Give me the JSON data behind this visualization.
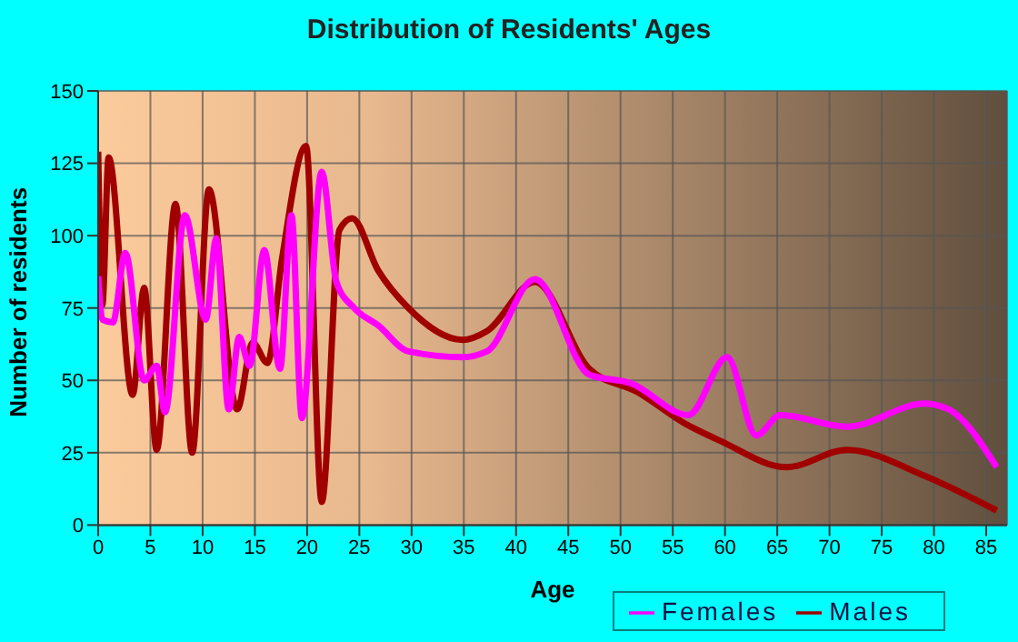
{
  "chart_data": {
    "type": "line",
    "title": "Distribution of Residents' Ages",
    "xlabel": "Age",
    "ylabel": "Number of residents",
    "xlim": [
      0,
      87
    ],
    "xticks": [
      0,
      5,
      10,
      15,
      20,
      25,
      30,
      35,
      40,
      45,
      50,
      55,
      60,
      65,
      70,
      75,
      80,
      85
    ],
    "ylim": [
      0,
      150
    ],
    "yticks": [
      0,
      25,
      50,
      75,
      100,
      125,
      150
    ],
    "grid": true,
    "legend": "bottom right",
    "marker": "none",
    "line_style": "solid",
    "series": [
      {
        "name": "Males",
        "color": "#a00000",
        "x": [
          0,
          0.4,
          1,
          3.3,
          4.4,
          5.6,
          7.4,
          9,
          10.6,
          13.3,
          14.8,
          16.2,
          17.6,
          19.9,
          21.4,
          23.1,
          24.3,
          26.8,
          29.7,
          34.9,
          37.2,
          41.8,
          47,
          51.6,
          56.2,
          59.6,
          65.9,
          71.7,
          79.1,
          86
        ],
        "values": [
          129,
          76,
          127,
          45,
          82,
          26,
          111,
          25,
          116,
          40,
          63,
          56,
          92,
          131,
          8,
          102,
          106,
          88,
          75,
          64,
          67,
          84,
          54,
          46,
          35,
          29,
          20,
          26,
          17,
          5
        ]
      },
      {
        "name": "Females",
        "color": "#ff00ff",
        "x": [
          0,
          0.4,
          1.4,
          2.6,
          4.4,
          5.6,
          6.4,
          8.3,
          10.3,
          11.3,
          12.5,
          13.5,
          14.5,
          15.9,
          17.4,
          18.5,
          19.5,
          21.4,
          22.8,
          24.5,
          26.8,
          29.7,
          34.9,
          37.2,
          41.8,
          47,
          51,
          56.5,
          60.2,
          63,
          65.3,
          71.7,
          79.1,
          81.4,
          86
        ],
        "values": [
          86,
          71,
          70,
          94,
          50,
          55,
          39,
          107,
          71,
          99,
          40,
          65,
          55,
          95,
          54,
          107,
          37,
          122,
          84,
          75,
          69,
          60,
          58,
          60,
          85,
          52,
          49,
          38,
          58,
          31,
          38,
          34,
          42,
          40,
          20
        ]
      }
    ]
  }
}
